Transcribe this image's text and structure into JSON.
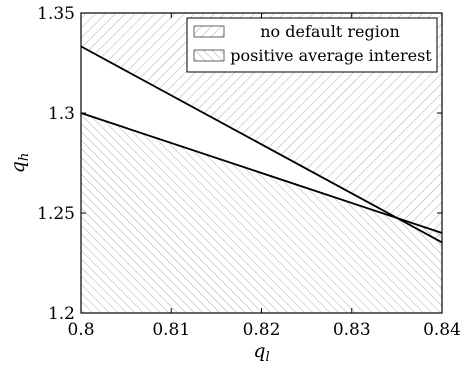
{
  "chart_data": {
    "type": "area",
    "xlabel": "q_l",
    "ylabel": "q_h",
    "xlim": [
      0.8,
      0.84
    ],
    "ylim": [
      1.2,
      1.35
    ],
    "x_ticks": [
      0.8,
      0.81,
      0.82,
      0.83,
      0.84
    ],
    "x_tick_labels": [
      "0.8",
      "0.81",
      "0.82",
      "0.83",
      "0.84"
    ],
    "y_ticks": [
      1.2,
      1.25,
      1.3,
      1.35
    ],
    "y_tick_labels": [
      "1.2",
      "1.25",
      "1.3",
      "1.35"
    ],
    "grid": false,
    "legend_position": "top-right",
    "series": [
      {
        "name": "no default region",
        "fill": "hatched, lines falling to the right",
        "boundary": {
          "x": [
            0.8,
            0.84
          ],
          "y": [
            1.3333,
            1.2353
          ]
        },
        "fills": "above boundary"
      },
      {
        "name": "positive average interest",
        "fill": "hatched, lines falling to the right (denser)",
        "boundary": {
          "x": [
            0.8,
            0.84
          ],
          "y": [
            1.3,
            1.24
          ]
        },
        "fills": "below boundary"
      }
    ],
    "colors": {
      "line": "#000000",
      "hatch": "#a6a6a6"
    }
  }
}
